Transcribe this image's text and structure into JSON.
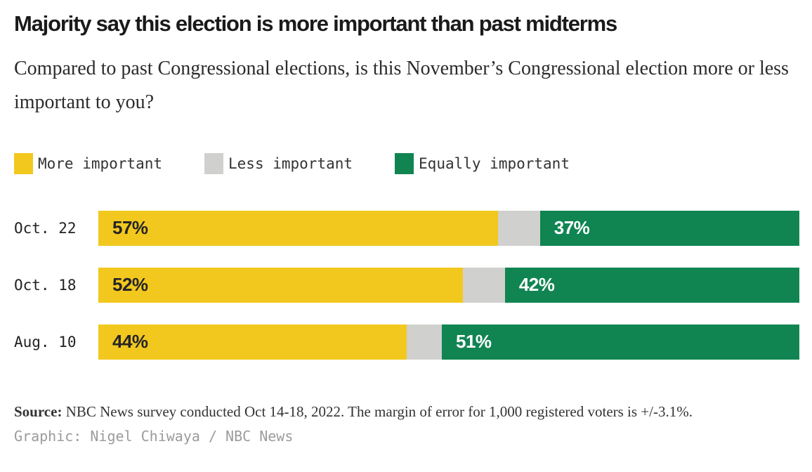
{
  "header": {
    "title": "Majority say this election is more important than past midterms",
    "subtitle": "Compared to past Congressional elections, is this November’s Congressional election more or less important to you?"
  },
  "colors": {
    "more_important": "#f2c81e",
    "less_important": "#d0d0ce",
    "equally_important": "#108552",
    "value_on_yellow": "#252525",
    "value_on_green": "#ffffff"
  },
  "legend": [
    {
      "label": "More important",
      "color": "#f2c81e"
    },
    {
      "label": "Less important",
      "color": "#d0d0ce"
    },
    {
      "label": "Equally important",
      "color": "#108552"
    }
  ],
  "chart_data": {
    "type": "bar",
    "orientation": "horizontal",
    "stacked": true,
    "title": "Majority say this election is more important than past midterms",
    "xlabel": "",
    "ylabel": "",
    "xlim": [
      0,
      100
    ],
    "grid": false,
    "legend_position": "top",
    "categories": [
      "Oct. 22",
      "Oct. 18",
      "Aug. 10"
    ],
    "series": [
      {
        "name": "More important",
        "color": "#f2c81e",
        "values": [
          57,
          52,
          44
        ],
        "labels": [
          "57%",
          "52%",
          "44%"
        ]
      },
      {
        "name": "Less important",
        "color": "#d0d0ce",
        "values": [
          6,
          6,
          5
        ],
        "labels": [
          "",
          "",
          ""
        ]
      },
      {
        "name": "Equally important",
        "color": "#108552",
        "values": [
          37,
          42,
          51
        ],
        "labels": [
          "37%",
          "42%",
          "51%"
        ]
      }
    ]
  },
  "footer": {
    "source_label": "Source:",
    "source_text": " NBC News survey conducted Oct 14-18, 2022. The margin of error for 1,000 registered voters is +/-3.1%.",
    "credit": "Graphic: Nigel Chiwaya / NBC News"
  }
}
